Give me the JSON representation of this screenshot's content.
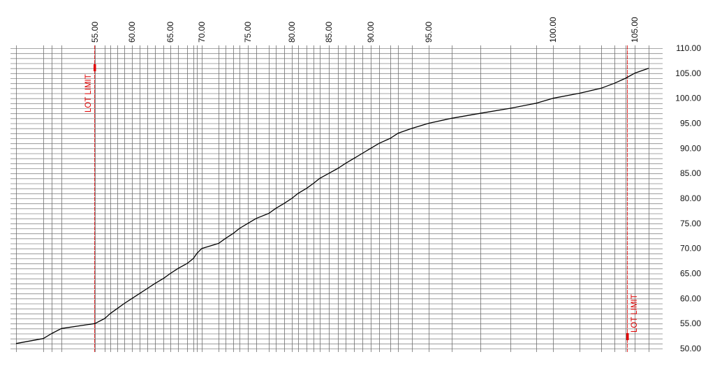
{
  "chart_data": {
    "type": "line",
    "title": "",
    "xlabel": "",
    "ylabel": "",
    "ylim": [
      50,
      110
    ],
    "y_ticks": [
      "50.00",
      "55.00",
      "60.00",
      "65.00",
      "70.00",
      "75.00",
      "80.00",
      "85.00",
      "90.00",
      "95.00",
      "100.00",
      "105.00",
      "110.00"
    ],
    "x_tick_labels": [
      "55.00",
      "60.00",
      "65.00",
      "70.00",
      "75.00",
      "80.00",
      "85.00",
      "90.00",
      "95.00",
      "100.00",
      "105.00"
    ],
    "grid": true,
    "series": [
      {
        "values": [
          51,
          52,
          53,
          54,
          55,
          56,
          57,
          58,
          59,
          60,
          61,
          62,
          63,
          64,
          65,
          66,
          67,
          68,
          69,
          70,
          71,
          72,
          73,
          74,
          75,
          76,
          77,
          78,
          79,
          80,
          81,
          82,
          83,
          84,
          85,
          86,
          87,
          88,
          89,
          90,
          91,
          92,
          93,
          94,
          95,
          96,
          97,
          98,
          99,
          100,
          101,
          102,
          103,
          104,
          105,
          106
        ],
        "color": "#000000"
      }
    ],
    "annotations": [
      {
        "text": "LOT LIMIT",
        "at": 55,
        "color": "#e00000"
      },
      {
        "text": "LOT LIMIT",
        "at": 104,
        "color": "#e00000"
      }
    ]
  }
}
